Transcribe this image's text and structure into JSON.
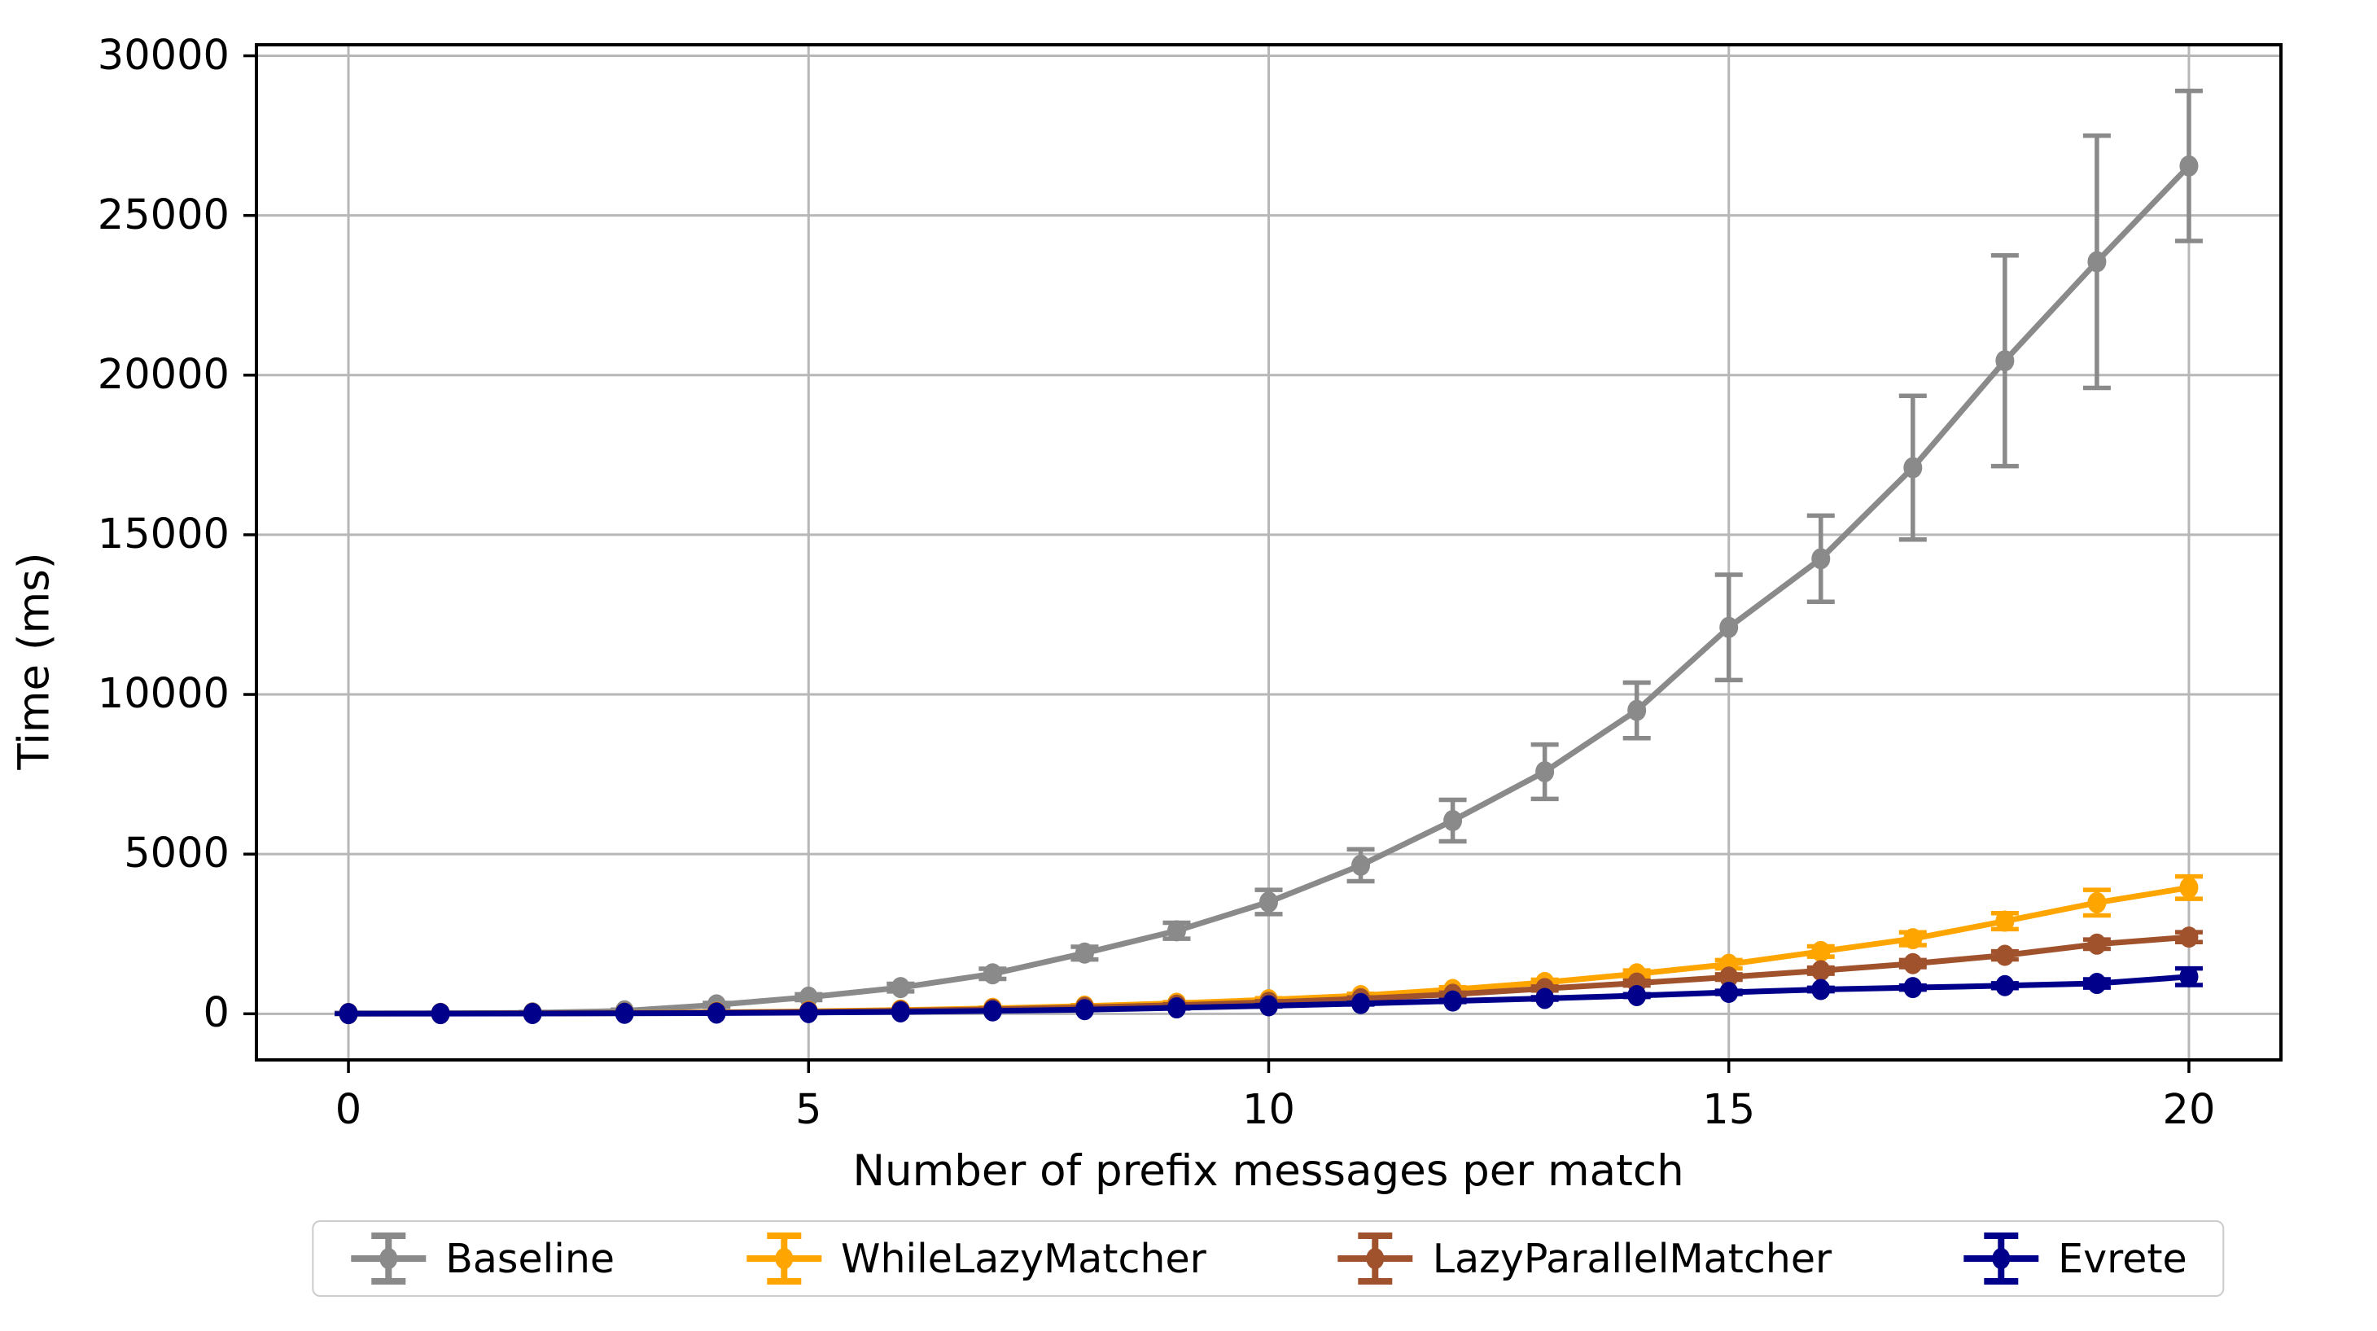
{
  "chart_data": {
    "type": "line",
    "title": "",
    "xlabel": "Number of prefix messages per match",
    "ylabel": "Time (ms)",
    "x": [
      0,
      1,
      2,
      3,
      4,
      5,
      6,
      7,
      8,
      9,
      10,
      11,
      12,
      13,
      14,
      15,
      16,
      17,
      18,
      19,
      20
    ],
    "series": [
      {
        "name": "Baseline",
        "color": "#8a8a8a",
        "values": [
          10,
          15,
          30,
          90,
          280,
          520,
          820,
          1250,
          1900,
          2600,
          3500,
          4650,
          6050,
          7580,
          9500,
          12100,
          14250,
          17100,
          20450,
          23550,
          26550
        ],
        "errors": [
          20,
          20,
          25,
          40,
          60,
          90,
          120,
          160,
          200,
          250,
          380,
          500,
          650,
          850,
          870,
          1650,
          1350,
          2250,
          3300,
          3950,
          2350
        ]
      },
      {
        "name": "WhileLazyMatcher",
        "color": "#ffa500",
        "values": [
          5,
          8,
          15,
          25,
          45,
          75,
          115,
          170,
          240,
          330,
          440,
          570,
          760,
          980,
          1250,
          1550,
          1950,
          2350,
          2900,
          3480,
          3950
        ],
        "errors": [
          4,
          4,
          5,
          6,
          8,
          12,
          16,
          22,
          28,
          35,
          45,
          55,
          70,
          85,
          105,
          130,
          160,
          200,
          250,
          400,
          350
        ]
      },
      {
        "name": "LazyParallelMatcher",
        "color": "#a0522d",
        "values": [
          5,
          8,
          14,
          22,
          38,
          62,
          95,
          140,
          200,
          270,
          360,
          470,
          610,
          790,
          960,
          1150,
          1350,
          1570,
          1830,
          2180,
          2400
        ],
        "errors": [
          4,
          4,
          5,
          6,
          8,
          10,
          13,
          17,
          22,
          28,
          35,
          42,
          52,
          62,
          75,
          85,
          95,
          110,
          125,
          145,
          155
        ]
      },
      {
        "name": "Evrete",
        "color": "#00008b",
        "values": [
          4,
          6,
          9,
          14,
          22,
          38,
          60,
          90,
          130,
          185,
          250,
          320,
          400,
          480,
          570,
          670,
          760,
          820,
          880,
          950,
          1160
        ],
        "errors": [
          3,
          3,
          4,
          5,
          6,
          8,
          10,
          12,
          15,
          18,
          22,
          27,
          32,
          38,
          44,
          50,
          55,
          62,
          75,
          130,
          260
        ]
      }
    ],
    "x_ticks": [
      0,
      5,
      10,
      15,
      20
    ],
    "y_ticks": [
      0,
      5000,
      10000,
      15000,
      20000,
      25000,
      30000
    ],
    "xlim": [
      -1,
      21
    ],
    "ylim": [
      -1445,
      30345
    ],
    "grid": true,
    "legend_position": "lower-center-outside",
    "marker": "circle",
    "colors": {
      "background": "#ffffff",
      "spine": "#000000",
      "grid": "#b7b7b7",
      "text": "#000000",
      "legend_border": "#cccccc"
    }
  }
}
